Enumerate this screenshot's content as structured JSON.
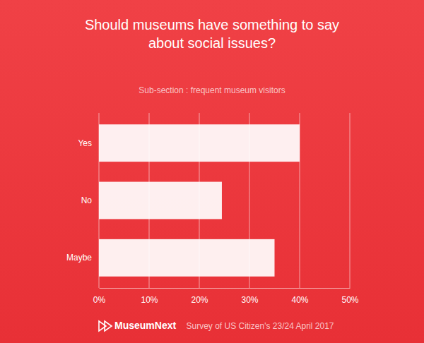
{
  "chart_data": {
    "type": "bar",
    "orientation": "horizontal",
    "title": "Should museums have something to say about social issues?",
    "subtitle": "Sub-section : frequent museum visitors",
    "categories": [
      "Yes",
      "No",
      "Maybe"
    ],
    "values": [
      40,
      24.5,
      35
    ],
    "color": "#ffffff",
    "xlim": [
      0,
      50
    ],
    "xticks": [
      {
        "value": 0,
        "label": "0%"
      },
      {
        "value": 10,
        "label": "10%"
      },
      {
        "value": 20,
        "label": "20%"
      },
      {
        "value": 30,
        "label": "30%"
      },
      {
        "value": 40,
        "label": "40%"
      },
      {
        "value": 50,
        "label": "50%"
      }
    ],
    "grid": true,
    "annotations": [
      "MuseumNext",
      "Survey of US Citizen's 23/24 April 2017"
    ]
  }
}
